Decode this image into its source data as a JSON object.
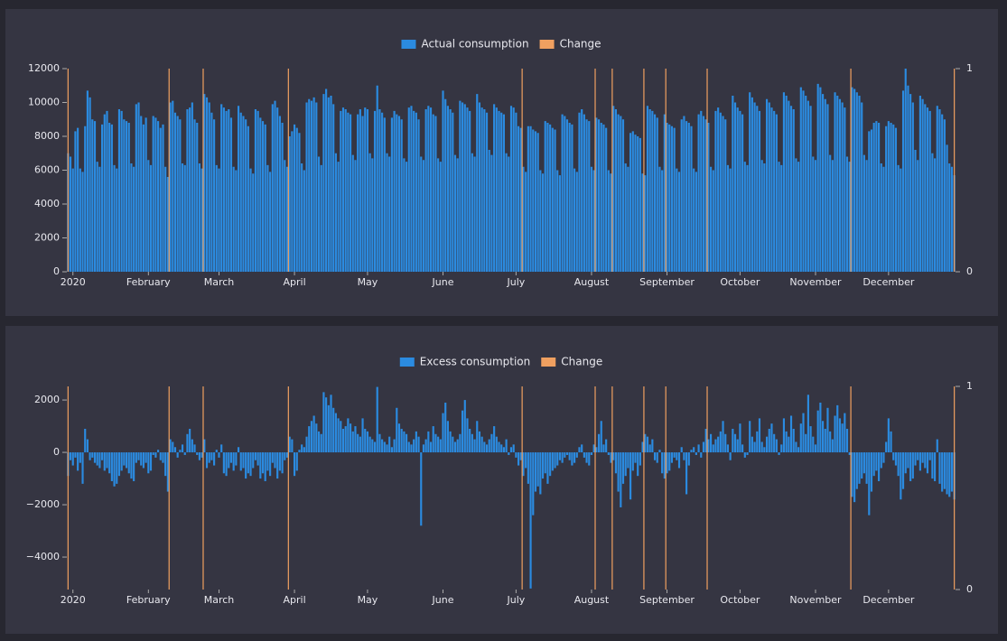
{
  "chart_data": [
    {
      "type": "bar",
      "series": [
        {
          "name": "Actual consumption",
          "color": "#2b8be0",
          "values": [
            7000,
            6800,
            6100,
            8300,
            8500,
            6100,
            5900,
            8600,
            10700,
            10300,
            9000,
            8900,
            6500,
            6200,
            8700,
            9300,
            9500,
            8800,
            8700,
            6300,
            6100,
            9600,
            9500,
            9000,
            8900,
            8800,
            6400,
            6200,
            9900,
            10000,
            9200,
            8700,
            9100,
            6600,
            6300,
            9200,
            9100,
            8900,
            8500,
            8700,
            6200,
            5600,
            10000,
            10100,
            9400,
            9200,
            9000,
            6400,
            6300,
            9600,
            9700,
            10000,
            9000,
            8800,
            6400,
            6100,
            10500,
            10300,
            10000,
            9400,
            9000,
            6300,
            6100,
            9900,
            9700,
            9500,
            9600,
            9100,
            6200,
            6000,
            9800,
            9400,
            9200,
            9000,
            8600,
            6100,
            5800,
            9600,
            9500,
            9100,
            8900,
            8700,
            6300,
            5900,
            9900,
            10100,
            9700,
            9200,
            8800,
            6600,
            6200,
            8000,
            8300,
            8700,
            8500,
            8200,
            6400,
            6000,
            10000,
            10200,
            10100,
            10300,
            10000,
            6800,
            6300,
            10500,
            10800,
            10300,
            10400,
            9900,
            7000,
            6500,
            9500,
            9700,
            9600,
            9400,
            9300,
            6900,
            6600,
            9300,
            9600,
            9200,
            9700,
            9600,
            7000,
            6700,
            9500,
            11000,
            9600,
            9400,
            9100,
            7000,
            6800,
            9100,
            9500,
            9300,
            9200,
            9000,
            6700,
            6500,
            9700,
            9800,
            9500,
            9400,
            9000,
            6800,
            6600,
            9600,
            9800,
            9700,
            9300,
            9200,
            6700,
            6500,
            10700,
            10200,
            9800,
            9600,
            9400,
            6900,
            6700,
            10100,
            10000,
            9900,
            9700,
            9500,
            7000,
            6800,
            10500,
            10000,
            9700,
            9600,
            9400,
            7200,
            6900,
            9900,
            9700,
            9500,
            9400,
            9300,
            7000,
            6800,
            9800,
            9700,
            9400,
            8600,
            8500,
            6200,
            5900,
            8600,
            8600,
            8400,
            8300,
            8200,
            6000,
            5800,
            8900,
            8800,
            8700,
            8500,
            8400,
            6000,
            5700,
            9300,
            9200,
            9000,
            8800,
            8700,
            6100,
            5900,
            9400,
            9600,
            9300,
            9000,
            8900,
            6200,
            6000,
            9100,
            9000,
            8800,
            8700,
            8500,
            6000,
            5800,
            9800,
            9600,
            9300,
            9200,
            9000,
            6400,
            6200,
            8200,
            8300,
            8100,
            8000,
            7900,
            5800,
            5700,
            9800,
            9600,
            9500,
            9300,
            9100,
            6200,
            6000,
            9300,
            8800,
            8700,
            8600,
            8500,
            6100,
            5900,
            9000,
            9200,
            8900,
            8800,
            8600,
            6100,
            5900,
            9300,
            9500,
            9200,
            9000,
            8800,
            6200,
            6000,
            9500,
            9700,
            9400,
            9200,
            9000,
            6300,
            6100,
            10400,
            10000,
            9700,
            9500,
            9300,
            6500,
            6300,
            10600,
            10300,
            10000,
            9800,
            9500,
            6600,
            6400,
            10200,
            10000,
            9700,
            9500,
            9300,
            6500,
            6300,
            10600,
            10400,
            10100,
            9800,
            9600,
            6700,
            6500,
            10900,
            10700,
            10400,
            10100,
            9800,
            6800,
            6600,
            11100,
            10900,
            10500,
            10200,
            9900,
            6900,
            6600,
            10600,
            10400,
            10200,
            10000,
            9700,
            6800,
            6500,
            10900,
            10800,
            10600,
            10400,
            10000,
            6900,
            6600,
            8300,
            8400,
            8800,
            8900,
            8800,
            6400,
            6200,
            8600,
            8900,
            8800,
            8700,
            8500,
            6300,
            6100,
            10700,
            12000,
            11000,
            10500,
            10000,
            7200,
            6600,
            10400,
            10200,
            9900,
            9700,
            9500,
            7000,
            6700,
            9800,
            9600,
            9300,
            9000,
            7500,
            6400,
            6200,
            5700
          ]
        },
        {
          "name": "Change",
          "color": "#f0a060",
          "axis": "y2",
          "x": [
            0,
            41.5,
            55.5,
            90.5,
            186.5,
            216.5,
            223.5,
            236.5,
            245.5,
            262.5,
            321.5,
            364
          ],
          "values": [
            1,
            1,
            1,
            1,
            1,
            1,
            1,
            1,
            1,
            1,
            1,
            1
          ]
        }
      ],
      "xlim": [
        -0.5,
        364.5
      ],
      "xticks": [
        {
          "value": 2,
          "label": "2020"
        },
        {
          "value": 33,
          "label": "February"
        },
        {
          "value": 62,
          "label": "March"
        },
        {
          "value": 93,
          "label": "April"
        },
        {
          "value": 123,
          "label": "May"
        },
        {
          "value": 154,
          "label": "June"
        },
        {
          "value": 184,
          "label": "July"
        },
        {
          "value": 215,
          "label": "August"
        },
        {
          "value": 246,
          "label": "September"
        },
        {
          "value": 276,
          "label": "October"
        },
        {
          "value": 307,
          "label": "November"
        },
        {
          "value": 337,
          "label": "December"
        }
      ],
      "ylim": [
        0,
        12000
      ],
      "yticks": [
        0,
        2000,
        4000,
        6000,
        8000,
        10000,
        12000
      ],
      "y2lim": [
        0,
        1
      ],
      "y2ticks": [
        0,
        1
      ]
    },
    {
      "type": "bar",
      "series": [
        {
          "name": "Excess consumption",
          "color": "#2b8be0",
          "values": [
            -900,
            -300,
            -500,
            -200,
            -700,
            -400,
            -1200,
            900,
            500,
            -300,
            -200,
            -400,
            -500,
            -600,
            -300,
            -700,
            -600,
            -800,
            -1100,
            -1300,
            -1200,
            -900,
            -700,
            -500,
            -600,
            -800,
            -1000,
            -1100,
            -400,
            -300,
            -500,
            -600,
            -400,
            -800,
            -700,
            -100,
            -200,
            100,
            -300,
            -400,
            -900,
            -1500,
            500,
            400,
            200,
            -200,
            100,
            300,
            -100,
            700,
            900,
            500,
            300,
            -100,
            -300,
            -200,
            500,
            -600,
            -400,
            -300,
            -500,
            100,
            -200,
            300,
            -800,
            -900,
            -600,
            -400,
            -700,
            -500,
            200,
            -700,
            -600,
            -1000,
            -800,
            -900,
            -600,
            -300,
            -500,
            -1000,
            -800,
            -1100,
            -700,
            -900,
            -400,
            -600,
            -1000,
            -700,
            -800,
            -300,
            -200,
            600,
            500,
            -900,
            -700,
            100,
            300,
            200,
            600,
            1000,
            1200,
            1400,
            1100,
            800,
            700,
            2300,
            2100,
            1800,
            2200,
            1700,
            1500,
            1300,
            1200,
            900,
            1000,
            1300,
            1100,
            800,
            1000,
            700,
            600,
            1300,
            900,
            800,
            600,
            500,
            400,
            2500,
            700,
            500,
            400,
            300,
            600,
            200,
            500,
            1700,
            1100,
            900,
            800,
            700,
            400,
            300,
            500,
            800,
            600,
            -2800,
            300,
            500,
            800,
            400,
            1000,
            700,
            600,
            500,
            1500,
            1900,
            1200,
            800,
            600,
            400,
            500,
            700,
            1600,
            2000,
            1300,
            900,
            700,
            500,
            1200,
            800,
            600,
            400,
            300,
            500,
            700,
            1000,
            600,
            400,
            300,
            200,
            500,
            -100,
            200,
            300,
            -200,
            -500,
            -300,
            -900,
            -600,
            -1200,
            -5200,
            -2400,
            -1500,
            -1300,
            -1600,
            -1000,
            -800,
            -1200,
            -900,
            -700,
            -600,
            -500,
            -300,
            -400,
            -200,
            -100,
            -300,
            -500,
            -400,
            -200,
            200,
            300,
            -200,
            -400,
            -500,
            -100,
            300,
            200,
            700,
            1200,
            300,
            500,
            -100,
            -400,
            -300,
            -800,
            -1500,
            -2100,
            -1200,
            -900,
            -600,
            -1800,
            -700,
            -400,
            -900,
            -500,
            400,
            700,
            600,
            300,
            500,
            -300,
            -400,
            100,
            -800,
            -1000,
            -800,
            -700,
            -400,
            -200,
            -300,
            -600,
            200,
            -300,
            -1600,
            -500,
            100,
            200,
            -100,
            300,
            -200,
            400,
            900,
            500,
            700,
            300,
            500,
            600,
            800,
            1200,
            700,
            300,
            -300,
            900,
            700,
            500,
            1100,
            300,
            -200,
            -100,
            1200,
            600,
            400,
            800,
            1300,
            400,
            200,
            600,
            900,
            1100,
            700,
            500,
            -100,
            300,
            1300,
            800,
            600,
            1400,
            900,
            400,
            200,
            1100,
            1500,
            700,
            2200,
            1000,
            600,
            300,
            1600,
            1900,
            1200,
            900,
            1700,
            800,
            500,
            1400,
            1800,
            1300,
            1100,
            1500,
            900,
            -100,
            -1700,
            -1900,
            -1400,
            -1200,
            -1000,
            -800,
            -1200,
            -2400,
            -1500,
            -900,
            -700,
            -1100,
            -600,
            -400,
            400,
            1300,
            800,
            -300,
            -500,
            -900,
            -1800,
            -1400,
            -800,
            -600,
            -1100,
            -1000,
            -500,
            -300,
            -700,
            -400,
            -600,
            -800,
            -300,
            -1000,
            -1100,
            500,
            -1200,
            -1500,
            -1400,
            -1600,
            -1700,
            -1500,
            -1800
          ]
        },
        {
          "name": "Change",
          "color": "#f0a060",
          "axis": "y2",
          "x": [
            0,
            41.5,
            55.5,
            90.5,
            186.5,
            216.5,
            223.5,
            236.5,
            245.5,
            262.5,
            321.5,
            364
          ],
          "values": [
            1,
            1,
            1,
            1,
            1,
            1,
            1,
            1,
            1,
            1,
            1,
            1
          ]
        }
      ],
      "xlim": [
        -0.5,
        364.5
      ],
      "xticks": [
        {
          "value": 2,
          "label": "2020"
        },
        {
          "value": 33,
          "label": "February"
        },
        {
          "value": 62,
          "label": "March"
        },
        {
          "value": 93,
          "label": "April"
        },
        {
          "value": 123,
          "label": "May"
        },
        {
          "value": 154,
          "label": "June"
        },
        {
          "value": 184,
          "label": "July"
        },
        {
          "value": 215,
          "label": "August"
        },
        {
          "value": 246,
          "label": "September"
        },
        {
          "value": 276,
          "label": "October"
        },
        {
          "value": 307,
          "label": "November"
        },
        {
          "value": 337,
          "label": "December"
        }
      ],
      "ylim": [
        -5240,
        2520
      ],
      "yticks": [
        {
          "value": -4000,
          "label": "−4000"
        },
        {
          "value": -2000,
          "label": "−2000"
        },
        0,
        2000
      ],
      "y2lim": [
        0,
        1
      ],
      "y2ticks": [
        0,
        1
      ]
    }
  ]
}
